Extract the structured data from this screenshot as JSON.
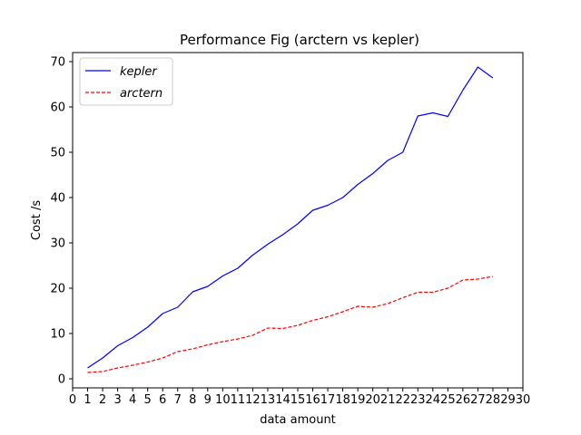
{
  "chart_data": {
    "type": "line",
    "title": "Performance Fig (arctern vs kepler)",
    "xlabel": "data amount",
    "ylabel": "Cost /s",
    "xlim": [
      0,
      30
    ],
    "ylim": [
      -2,
      72
    ],
    "xticks": [
      0,
      1,
      2,
      3,
      4,
      5,
      6,
      7,
      8,
      9,
      10,
      11,
      12,
      13,
      14,
      15,
      16,
      17,
      18,
      19,
      20,
      21,
      22,
      23,
      24,
      25,
      26,
      27,
      28,
      29,
      30
    ],
    "yticks": [
      0,
      10,
      20,
      30,
      40,
      50,
      60,
      70
    ],
    "grid": false,
    "legend_position": "top-left",
    "x": [
      1,
      2,
      3,
      4,
      5,
      6,
      7,
      8,
      9,
      10,
      11,
      12,
      13,
      14,
      15,
      16,
      17,
      18,
      19,
      20,
      21,
      22,
      23,
      24,
      25,
      26,
      27,
      28
    ],
    "series": [
      {
        "name": "kepler",
        "color": "#0000ff",
        "style": "solid",
        "values": [
          2.4,
          4.6,
          7.3,
          9.1,
          11.4,
          14.4,
          15.8,
          19.2,
          20.4,
          22.7,
          24.4,
          27.3,
          29.7,
          31.8,
          34.2,
          37.2,
          38.3,
          40.0,
          42.9,
          45.3,
          48.2,
          50.0,
          58.0,
          58.7,
          57.9,
          63.7,
          68.8,
          66.4
        ]
      },
      {
        "name": "arctern",
        "color": "#ff0000",
        "style": "dashed",
        "values": [
          1.4,
          1.6,
          2.4,
          3.0,
          3.7,
          4.6,
          6.0,
          6.6,
          7.5,
          8.2,
          8.8,
          9.6,
          11.2,
          11.1,
          11.8,
          12.9,
          13.7,
          14.8,
          16.0,
          15.8,
          16.6,
          17.9,
          19.1,
          19.1,
          20.0,
          21.8,
          22.0,
          22.6
        ]
      }
    ]
  }
}
